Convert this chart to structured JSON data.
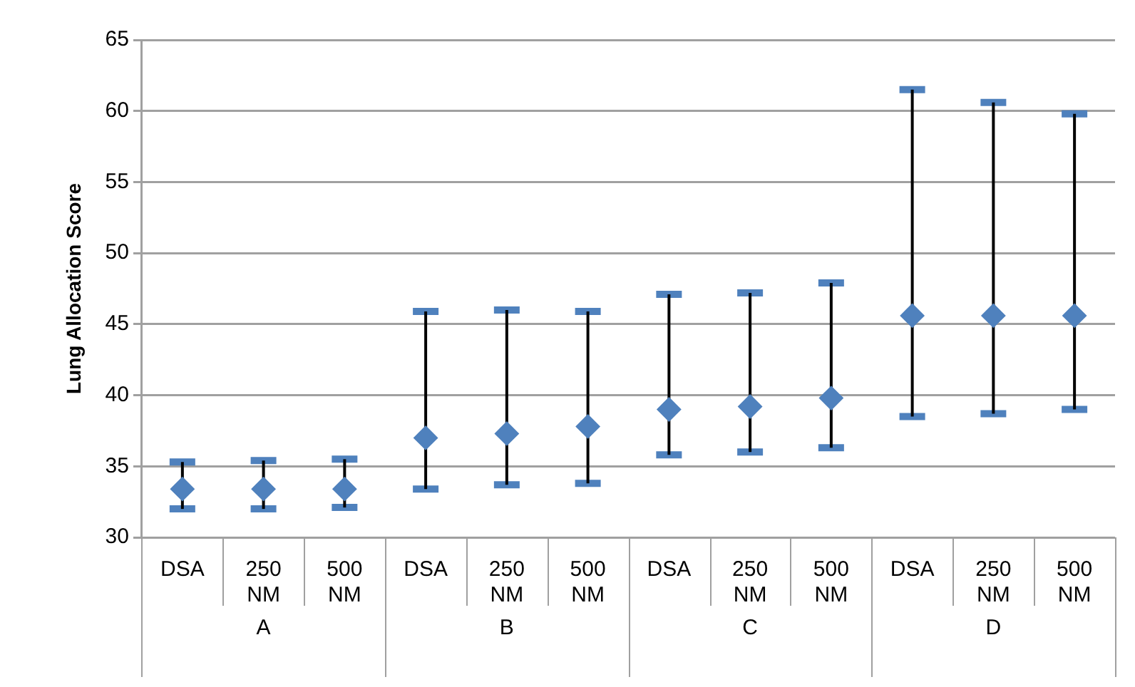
{
  "chart_data": {
    "type": "scatter",
    "ylabel": "Lung Allocation Score",
    "categories": [
      "DSA",
      "250 NM",
      "500 NM",
      "DSA",
      "250 NM",
      "500 NM",
      "DSA",
      "250 NM",
      "500 NM",
      "DSA",
      "250 NM",
      "500 NM"
    ],
    "series": [
      {
        "color": "#4f81bd",
        "values": [
          33.4,
          33.4,
          33.4,
          37.0,
          37.3,
          37.8,
          39.0,
          39.2,
          39.8,
          45.6,
          45.6,
          45.6
        ],
        "errors": [
          [
            32.0,
            35.3
          ],
          [
            32.0,
            35.4
          ],
          [
            32.1,
            35.5
          ],
          [
            33.4,
            45.9
          ],
          [
            33.7,
            46.0
          ],
          [
            33.8,
            45.9
          ],
          [
            35.8,
            47.1
          ],
          [
            36.0,
            47.2
          ],
          [
            36.3,
            47.9
          ],
          [
            38.5,
            61.5
          ],
          [
            38.7,
            60.6
          ],
          [
            39.0,
            59.8
          ]
        ]
      }
    ],
    "annotations": [
      "A",
      "B",
      "C",
      "D"
    ],
    "ylim": [
      30,
      65
    ],
    "yticks": [
      30,
      35,
      40,
      45,
      50,
      55,
      60,
      65
    ],
    "grid": "y",
    "legend": false,
    "marker": "diamond"
  }
}
